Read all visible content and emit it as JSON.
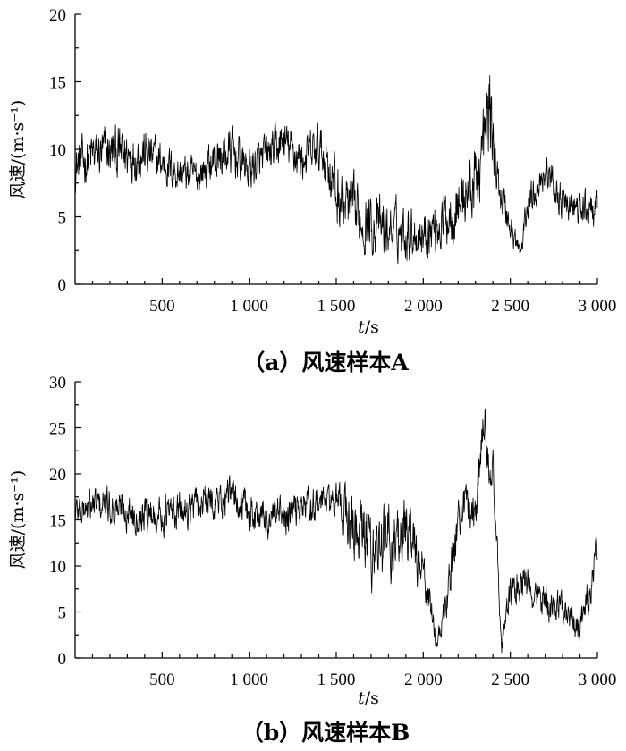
{
  "chart_data": [
    {
      "type": "line",
      "caption": "（a）风速样本A",
      "xlabel_var": "t",
      "xlabel_unit": "/s",
      "ylabel": "风速/(m·s⁻¹)",
      "xlim": [
        0,
        3000
      ],
      "ylim": [
        0,
        20
      ],
      "xticks": [
        500,
        1000,
        1500,
        2000,
        2500,
        3000
      ],
      "xtick_labels": [
        "500",
        "1 000",
        "1 500",
        "2 000",
        "2 500",
        "3 000"
      ],
      "yticks": [
        0,
        5,
        10,
        15,
        20
      ],
      "ytick_labels": [
        "0",
        "5",
        "10",
        "15",
        "20"
      ],
      "grid": false,
      "line_color": "#000000",
      "series": [
        {
          "x": [
            0,
            100,
            200,
            300,
            400,
            500,
            600,
            700,
            800,
            900,
            1000,
            1100,
            1200,
            1300,
            1400,
            1450,
            1500,
            1600,
            1700,
            1800,
            1900,
            2000,
            2100,
            2200,
            2300,
            2360,
            2380,
            2420,
            2500,
            2560,
            2600,
            2700,
            2800,
            2900,
            3000
          ],
          "y": [
            8.7,
            9.5,
            9.8,
            9.6,
            9.7,
            9.0,
            8.2,
            8.0,
            9.2,
            9.8,
            8.5,
            9.5,
            10.5,
            9.2,
            10.0,
            9.2,
            6.7,
            5.2,
            4.5,
            4.0,
            4.0,
            3.8,
            4.5,
            6.0,
            7.5,
            11.0,
            13.5,
            8.0,
            4.2,
            2.2,
            6.0,
            8.5,
            6.0,
            5.5,
            5.5
          ],
          "amplitude": [
            1.3,
            1.5,
            1.5,
            1.5,
            1.4,
            1.2,
            1.1,
            1.0,
            1.3,
            1.4,
            1.2,
            1.2,
            1.3,
            1.2,
            1.4,
            1.6,
            2.0,
            1.8,
            1.7,
            1.6,
            1.5,
            1.4,
            1.6,
            1.8,
            2.0,
            2.5,
            2.6,
            1.2,
            1.0,
            0.6,
            1.0,
            1.0,
            1.0,
            1.0,
            1.0
          ]
        }
      ]
    },
    {
      "type": "line",
      "caption": "（b）风速样本B",
      "xlabel_var": "t",
      "xlabel_unit": "/s",
      "ylabel": "风速/(m·s⁻¹)",
      "xlim": [
        0,
        3000
      ],
      "ylim": [
        0,
        30
      ],
      "xticks": [
        500,
        1000,
        1500,
        2000,
        2500,
        3000
      ],
      "xtick_labels": [
        "500",
        "1 000",
        "1 500",
        "2 000",
        "2 500",
        "3 000"
      ],
      "yticks": [
        0,
        5,
        10,
        15,
        20,
        25,
        30
      ],
      "ytick_labels": [
        "0",
        "5",
        "10",
        "15",
        "20",
        "25",
        "30"
      ],
      "grid": false,
      "line_color": "#000000",
      "series": [
        {
          "x": [
            0,
            100,
            200,
            300,
            400,
            500,
            600,
            700,
            800,
            900,
            1000,
            1100,
            1200,
            1300,
            1400,
            1500,
            1600,
            1700,
            1800,
            1900,
            1950,
            2000,
            2050,
            2080,
            2150,
            2200,
            2250,
            2300,
            2350,
            2400,
            2450,
            2500,
            2600,
            2700,
            2800,
            2900,
            2950,
            3000
          ],
          "y": [
            16.0,
            16.5,
            16.5,
            16.0,
            15.8,
            15.5,
            16.0,
            16.5,
            17.0,
            17.5,
            16.0,
            15.0,
            15.0,
            16.5,
            17.0,
            17.0,
            14.0,
            12.0,
            12.5,
            14.0,
            12.0,
            9.0,
            5.0,
            1.2,
            8.0,
            15.5,
            17.0,
            16.0,
            26.0,
            20.0,
            1.5,
            7.0,
            8.0,
            6.0,
            5.5,
            3.0,
            7.0,
            12.0
          ],
          "amplitude": [
            1.4,
            1.5,
            1.5,
            1.5,
            1.5,
            1.6,
            1.5,
            1.5,
            1.5,
            1.5,
            1.8,
            1.6,
            1.8,
            1.6,
            1.4,
            1.4,
            3.0,
            3.2,
            3.0,
            2.5,
            2.5,
            2.0,
            1.5,
            0.6,
            2.0,
            2.0,
            1.8,
            2.0,
            2.5,
            2.0,
            0.8,
            1.6,
            1.6,
            1.5,
            1.5,
            1.0,
            1.5,
            1.5
          ]
        }
      ]
    }
  ]
}
